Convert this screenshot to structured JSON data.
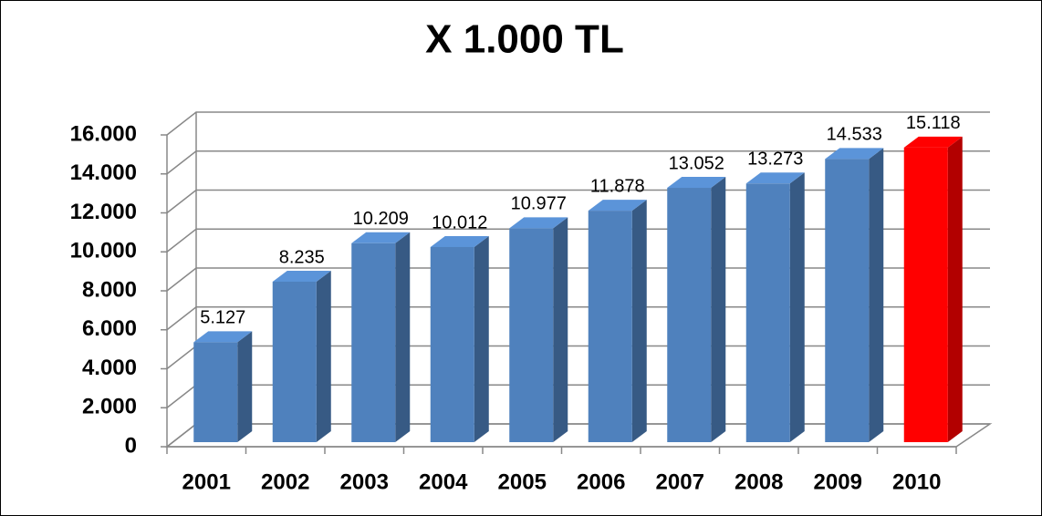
{
  "chart_data": {
    "type": "bar3d",
    "title": "X 1.000 TL",
    "categories": [
      "2001",
      "2002",
      "2003",
      "2004",
      "2005",
      "2006",
      "2007",
      "2008",
      "2009",
      "2010"
    ],
    "values": [
      5127,
      8235,
      10209,
      10012,
      10977,
      11878,
      13052,
      13273,
      14533,
      15118
    ],
    "value_labels": [
      "5.127",
      "8.235",
      "10.209",
      "10.012",
      "10.977",
      "11.878",
      "13.052",
      "13.273",
      "14.533",
      "15.118"
    ],
    "colors": [
      "#4f81bd",
      "#4f81bd",
      "#4f81bd",
      "#4f81bd",
      "#4f81bd",
      "#4f81bd",
      "#4f81bd",
      "#4f81bd",
      "#4f81bd",
      "#ff0000"
    ],
    "ylim": [
      0,
      16000
    ],
    "yticks": [
      0,
      {
        "value": 2000,
        "label": "2.000"
      },
      {
        "value": 4000,
        "label": "4.000"
      },
      {
        "value": 6000,
        "label": "6.000"
      },
      {
        "value": 8000,
        "label": "8.000"
      },
      {
        "value": 10000,
        "label": "10.000"
      },
      {
        "value": 12000,
        "label": "12.000"
      },
      {
        "value": 14000,
        "label": "14.000"
      },
      {
        "value": 16000,
        "label": "16.000"
      }
    ],
    "grid": true
  }
}
